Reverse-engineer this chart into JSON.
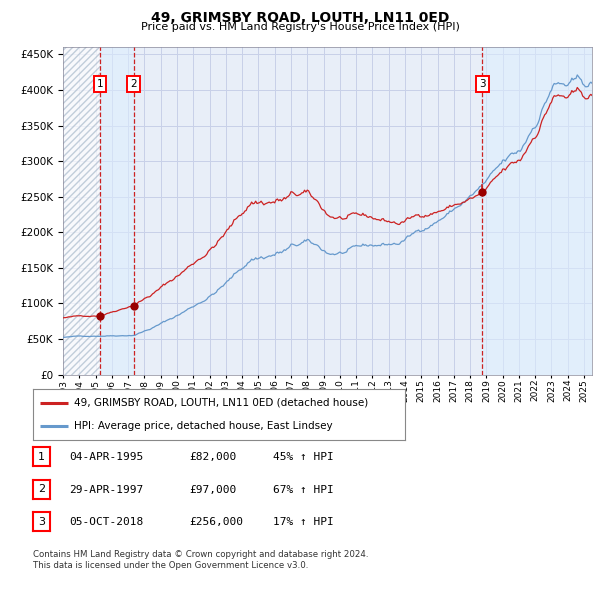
{
  "title": "49, GRIMSBY ROAD, LOUTH, LN11 0ED",
  "subtitle": "Price paid vs. HM Land Registry's House Price Index (HPI)",
  "legend_line1": "49, GRIMSBY ROAD, LOUTH, LN11 0ED (detached house)",
  "legend_line2": "HPI: Average price, detached house, East Lindsey",
  "footer1": "Contains HM Land Registry data © Crown copyright and database right 2024.",
  "footer2": "This data is licensed under the Open Government Licence v3.0.",
  "transactions": [
    {
      "num": 1,
      "date": "04-APR-1995",
      "price": 82000,
      "pct": "45%",
      "dir": "↑",
      "label": "HPI",
      "x_year": 1995.26
    },
    {
      "num": 2,
      "date": "29-APR-1997",
      "price": 97000,
      "pct": "67%",
      "dir": "↑",
      "label": "HPI",
      "x_year": 1997.33
    },
    {
      "num": 3,
      "date": "05-OCT-2018",
      "price": 256000,
      "pct": "17%",
      "dir": "↑",
      "label": "HPI",
      "x_year": 2018.76
    }
  ],
  "hpi_color": "#6699cc",
  "price_color": "#cc2222",
  "dot_color": "#990000",
  "grid_color": "#c8d0e8",
  "bg_color": "#e8eef8",
  "vline_color": "#cc2222",
  "ylim": [
    0,
    460000
  ],
  "xlim_start": 1993.0,
  "xlim_end": 2025.5
}
